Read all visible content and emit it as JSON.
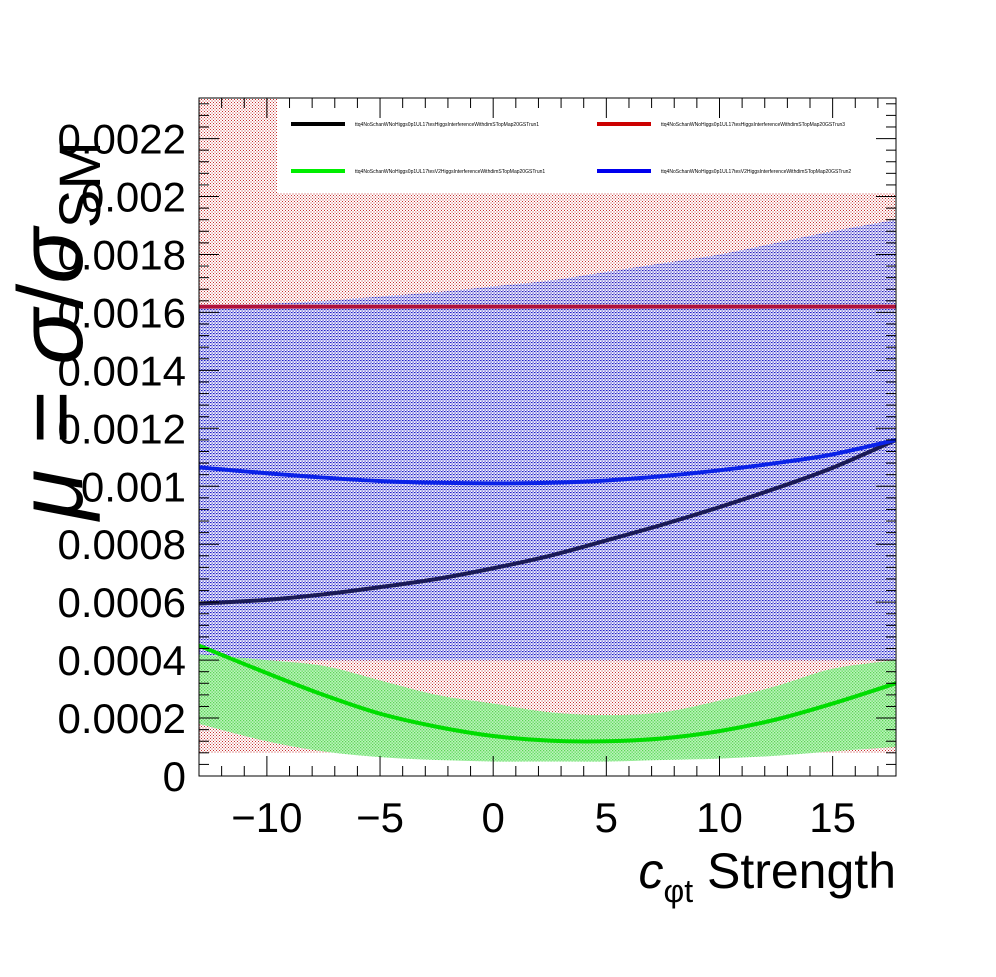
{
  "chart_data": {
    "type": "line",
    "title": "",
    "xlabel": {
      "main": "c",
      "subscript": "φt",
      "suffix": " Strength"
    },
    "ylabel": {
      "mu": "μ",
      "eq": " = ",
      "sigma": "σ",
      "slash": "/",
      "sigma_sm": "σ",
      "sm": "SM"
    },
    "xlim": [
      -13,
      17.8
    ],
    "ylim": [
      0,
      0.00234
    ],
    "xticks": [
      -10,
      -5,
      0,
      5,
      10,
      15
    ],
    "xtick_labels": [
      "−10",
      "−5",
      "0",
      "5",
      "10",
      "15"
    ],
    "yticks": [
      0,
      0.0002,
      0.0004,
      0.0006,
      0.0008,
      0.001,
      0.0012,
      0.0014,
      0.0016,
      0.0018,
      0.002,
      0.0022
    ],
    "ytick_labels": [
      "0",
      "0.0002",
      "0.0004",
      "0.0006",
      "0.0008",
      "0.001",
      "0.0012",
      "0.0014",
      "0.0016",
      "0.0018",
      "0.002",
      "0.0022"
    ],
    "grid": false,
    "legend_placement": "top",
    "x": [
      -13,
      -10,
      -7.5,
      -5,
      -2.5,
      0,
      2.5,
      5,
      7.5,
      10,
      12.5,
      15,
      17.8
    ],
    "series": [
      {
        "name": "ttq4NoSchanWNoHiggs0p1UL17tesHiggsInterferenceWithdimSTopMap20GSTrun1",
        "color": "#000000",
        "line_color": "#1a1a55",
        "band_color": "#3a3ab0",
        "values": [
          0.000595,
          0.000608,
          0.000627,
          0.000652,
          0.00068,
          0.000717,
          0.00076,
          0.000813,
          0.000868,
          0.000928,
          0.000993,
          0.001064,
          0.00116
        ],
        "band_lower": [
          0.0004,
          0.0004,
          0.0004,
          0.0004,
          0.0004,
          0.0004,
          0.0004,
          0.0004,
          0.0004,
          0.0004,
          0.0004,
          0.0004,
          0.0004
        ],
        "band_upper": [
          0.00162,
          0.00162,
          0.00162,
          0.00162,
          0.00162,
          0.00162,
          0.00162,
          0.00162,
          0.00162,
          0.00162,
          0.00162,
          0.00162,
          0.00162
        ]
      },
      {
        "name": "ttq4NoSchanWNoHiggs0p1UL17tesHiggsInterferenceWithdimSTopMap20GSTrun3",
        "color": "#cc0000",
        "line_color": "#b0103a",
        "band_color": "#cc2222",
        "values": [
          0.00162,
          0.00162,
          0.00162,
          0.00162,
          0.00162,
          0.00162,
          0.00162,
          0.00162,
          0.00162,
          0.00162,
          0.00162,
          0.00162,
          0.00162
        ],
        "band_lower": [
          8e-05,
          8e-05,
          8e-05,
          8e-05,
          8e-05,
          8e-05,
          8e-05,
          8e-05,
          8e-05,
          8e-05,
          8e-05,
          8e-05,
          8e-05
        ],
        "band_upper": [
          0.00234,
          0.00234,
          0.00234,
          0.00234,
          0.00234,
          0.00234,
          0.00234,
          0.00234,
          0.00234,
          0.00234,
          0.00234,
          0.00234,
          0.00234
        ]
      },
      {
        "name": "ttq4NoSchanWNoHiggs0p1UL17tesV2HiggsInterferenceWithdimSTopMap20GSTrun1",
        "color": "#00ee00",
        "line_color": "#00dd00",
        "band_color": "#66e066",
        "values": [
          0.00045,
          0.000355,
          0.00028,
          0.000215,
          0.00017,
          0.000138,
          0.000122,
          0.00012,
          0.00013,
          0.000155,
          0.000195,
          0.00025,
          0.00032
        ],
        "band_lower": [
          0.00018,
          0.00012,
          8.5e-05,
          6.5e-05,
          5.5e-05,
          5e-05,
          5e-05,
          5e-05,
          5.5e-05,
          6e-05,
          7e-05,
          8.5e-05,
          0.0001
        ],
        "band_upper": [
          0.00042,
          0.0004,
          0.00038,
          0.00033,
          0.00028,
          0.00025,
          0.00022,
          0.00021,
          0.00022,
          0.00026,
          0.00031,
          0.00037,
          0.0004
        ]
      },
      {
        "name": "ttq4NoSchanWNoHiggs0p1UL17tesV2HiggsInterferenceWithdimSTopMap20GSTrun2",
        "color": "#0000ee",
        "line_color": "#0a22e8",
        "band_color": "#2a2ad0",
        "values": [
          0.001065,
          0.001045,
          0.00103,
          0.001018,
          0.001012,
          0.00101,
          0.001012,
          0.00102,
          0.001035,
          0.001055,
          0.00108,
          0.00111,
          0.00116
        ],
        "band_lower": [
          0.0004,
          0.0004,
          0.0004,
          0.0004,
          0.0004,
          0.0004,
          0.0004,
          0.0004,
          0.0004,
          0.0004,
          0.0004,
          0.0004,
          0.0004
        ],
        "band_upper": [
          0.00162,
          0.00163,
          0.00164,
          0.001655,
          0.00167,
          0.00169,
          0.00171,
          0.00174,
          0.00177,
          0.0018,
          0.00184,
          0.00188,
          0.00192
        ]
      }
    ]
  }
}
